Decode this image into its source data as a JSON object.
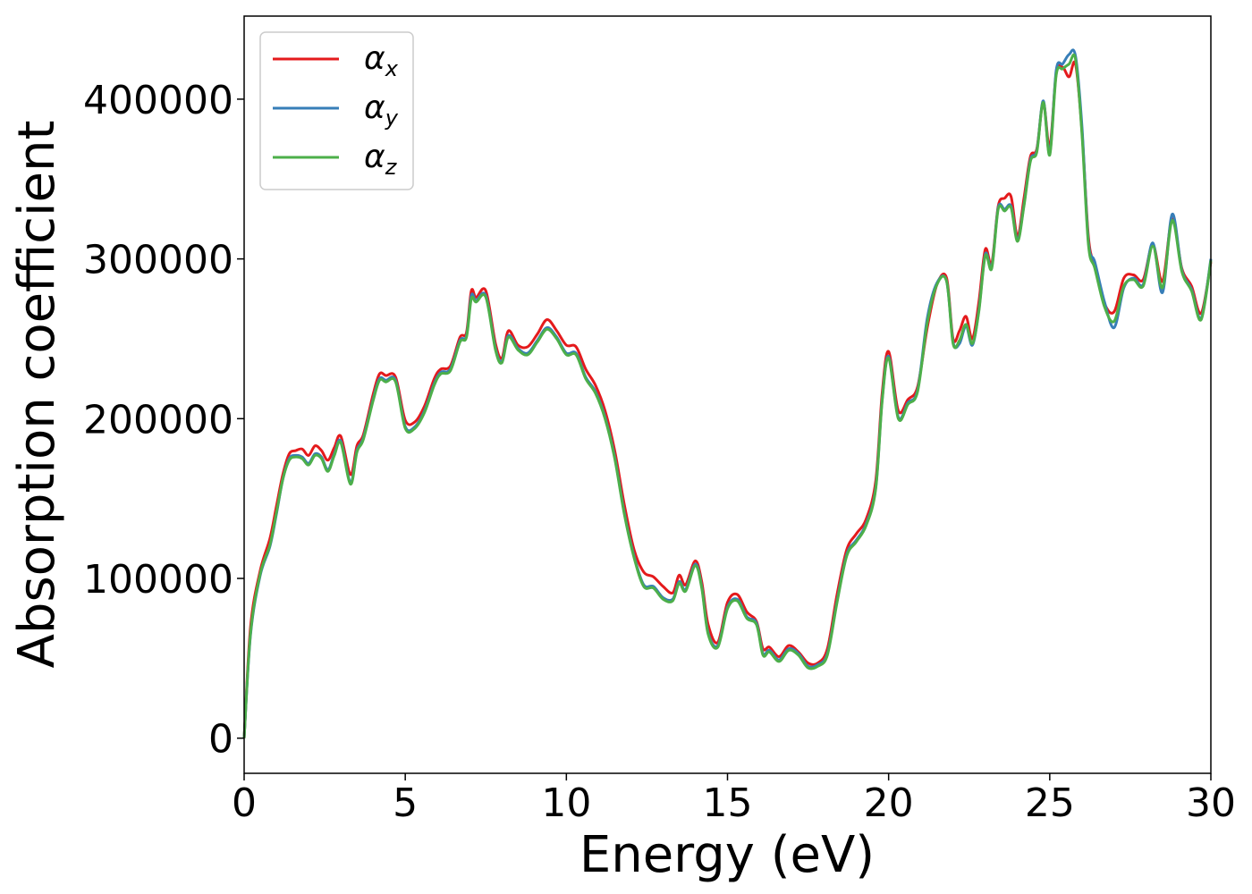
{
  "chart_data": {
    "type": "line",
    "title": "",
    "xlabel": "Energy (eV)",
    "ylabel": "Absorption coefficient",
    "xlim": [
      0,
      30
    ],
    "ylim": [
      -22000,
      452000
    ],
    "xticks": [
      0,
      5,
      10,
      15,
      20,
      25,
      30
    ],
    "yticks": [
      0,
      100000,
      200000,
      300000,
      400000
    ],
    "xtick_labels": [
      "0",
      "5",
      "10",
      "15",
      "20",
      "25",
      "30"
    ],
    "ytick_labels": [
      "0",
      "100000",
      "200000",
      "300000",
      "400000"
    ],
    "grid": false,
    "legend_placement": "top-left",
    "x": [
      0,
      0.2,
      0.5,
      0.8,
      1.0,
      1.2,
      1.4,
      1.6,
      1.8,
      2.0,
      2.2,
      2.4,
      2.6,
      2.8,
      3.0,
      3.3,
      3.5,
      3.7,
      4.0,
      4.2,
      4.4,
      4.7,
      5.0,
      5.3,
      5.6,
      5.9,
      6.1,
      6.4,
      6.7,
      6.9,
      7.05,
      7.2,
      7.5,
      7.8,
      8.0,
      8.2,
      8.5,
      8.8,
      9.1,
      9.4,
      9.7,
      10.0,
      10.3,
      10.6,
      10.9,
      11.2,
      11.5,
      11.8,
      12.1,
      12.4,
      12.7,
      13.0,
      13.3,
      13.5,
      13.7,
      14.0,
      14.2,
      14.4,
      14.7,
      15.0,
      15.3,
      15.6,
      15.9,
      16.1,
      16.3,
      16.6,
      16.9,
      17.2,
      17.5,
      17.8,
      18.1,
      18.4,
      18.7,
      19.0,
      19.3,
      19.6,
      19.8,
      20.0,
      20.3,
      20.6,
      20.9,
      21.2,
      21.5,
      21.8,
      22.0,
      22.2,
      22.4,
      22.6,
      22.8,
      23.0,
      23.2,
      23.4,
      23.6,
      23.8,
      24.0,
      24.2,
      24.4,
      24.6,
      24.8,
      25.0,
      25.2,
      25.4,
      25.6,
      25.8,
      26.0,
      26.2,
      26.4,
      26.7,
      27.0,
      27.3,
      27.6,
      27.9,
      28.2,
      28.5,
      28.8,
      29.1,
      29.4,
      29.7,
      30.0
    ],
    "series": [
      {
        "name": "αx",
        "label_main": "α",
        "label_sub": "x",
        "color": "#e41a1c",
        "values": [
          0,
          70000,
          105000,
          125000,
          145000,
          165000,
          178000,
          180000,
          181000,
          177000,
          183000,
          180000,
          174000,
          182000,
          189000,
          165000,
          183000,
          190000,
          215000,
          228000,
          227000,
          226000,
          199000,
          198000,
          208000,
          225000,
          231000,
          233000,
          251000,
          254000,
          280000,
          276000,
          280000,
          247000,
          238000,
          255000,
          246000,
          245000,
          253000,
          262000,
          255000,
          246000,
          245000,
          231000,
          221000,
          205000,
          180000,
          146000,
          118000,
          104000,
          101000,
          95000,
          91000,
          102000,
          96000,
          111000,
          98000,
          71000,
          60000,
          85000,
          90000,
          79000,
          73000,
          56000,
          57000,
          51000,
          58000,
          54000,
          47000,
          47000,
          56000,
          90000,
          118000,
          128000,
          137000,
          161000,
          216000,
          242000,
          205000,
          212000,
          220000,
          257000,
          284000,
          288000,
          250000,
          255000,
          264000,
          250000,
          273000,
          306000,
          297000,
          333000,
          338000,
          339000,
          314000,
          338000,
          364000,
          369000,
          398000,
          370000,
          416000,
          420000,
          414000,
          422000,
          380000,
          314000,
          295000,
          272000,
          267000,
          288000,
          290000,
          287000,
          309000,
          286000,
          325000,
          294000,
          283000,
          266000,
          298000
        ]
      },
      {
        "name": "αy",
        "label_main": "α",
        "label_sub": "y",
        "color": "#377eb8",
        "values": [
          0,
          65000,
          102000,
          120000,
          140000,
          162000,
          175000,
          177000,
          176000,
          172000,
          178000,
          176000,
          168000,
          178000,
          186000,
          160000,
          180000,
          188000,
          212000,
          225000,
          224000,
          224000,
          195000,
          195000,
          205000,
          222000,
          229000,
          231000,
          249000,
          252000,
          277000,
          274000,
          277000,
          244000,
          236000,
          252000,
          244000,
          241000,
          249000,
          257000,
          251000,
          241000,
          241000,
          226000,
          217000,
          201000,
          176000,
          141000,
          114000,
          96000,
          95000,
          88000,
          87000,
          98000,
          93000,
          109000,
          95000,
          66000,
          58000,
          82000,
          87000,
          76000,
          72000,
          53000,
          55000,
          49000,
          56000,
          53000,
          45000,
          46000,
          53000,
          86000,
          115000,
          124000,
          134000,
          157000,
          212000,
          239000,
          201000,
          210000,
          218000,
          263000,
          285000,
          286000,
          248000,
          247000,
          258000,
          246000,
          268000,
          303000,
          295000,
          332000,
          331000,
          333000,
          312000,
          334000,
          362000,
          368000,
          399000,
          366000,
          418000,
          422000,
          428000,
          427000,
          383000,
          311000,
          298000,
          273000,
          257000,
          282000,
          288000,
          284000,
          310000,
          279000,
          328000,
          293000,
          281000,
          263000,
          300000
        ]
      },
      {
        "name": "αz",
        "label_main": "α",
        "label_sub": "z",
        "color": "#4daf4a",
        "values": [
          0,
          66000,
          103000,
          121000,
          141000,
          162000,
          174000,
          176000,
          175000,
          171000,
          177000,
          175000,
          167000,
          177000,
          185000,
          159000,
          179000,
          187000,
          211000,
          224000,
          223000,
          223000,
          194000,
          194000,
          204000,
          221000,
          228000,
          230000,
          248000,
          251000,
          275000,
          273000,
          276000,
          243000,
          235000,
          251000,
          243000,
          240000,
          248000,
          256000,
          250000,
          240000,
          240000,
          225000,
          216000,
          200000,
          175000,
          140000,
          113000,
          95000,
          94000,
          87000,
          86000,
          97000,
          92000,
          108000,
          94000,
          65000,
          57000,
          81000,
          86000,
          75000,
          71000,
          52000,
          54000,
          48000,
          55000,
          52000,
          44000,
          45000,
          52000,
          85000,
          114000,
          123000,
          133000,
          156000,
          211000,
          238000,
          200000,
          209000,
          217000,
          260000,
          284000,
          286000,
          247000,
          249000,
          259000,
          247000,
          267000,
          302000,
          294000,
          331000,
          330000,
          332000,
          311000,
          333000,
          361000,
          367000,
          398000,
          365000,
          415000,
          419000,
          422000,
          425000,
          378000,
          309000,
          294000,
          270000,
          261000,
          283000,
          287000,
          283000,
          308000,
          282000,
          324000,
          292000,
          280000,
          262000,
          299000
        ]
      }
    ]
  }
}
